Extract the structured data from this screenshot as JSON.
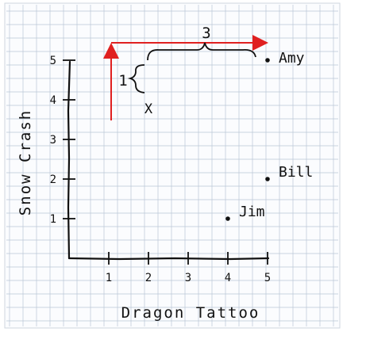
{
  "chart_data": {
    "type": "scatter",
    "xlabel": "Dragon Tattoo",
    "ylabel": "Snow Crash",
    "xlim": [
      0,
      5
    ],
    "ylim": [
      0,
      5
    ],
    "x_ticks": [
      "1",
      "2",
      "3",
      "4",
      "5"
    ],
    "y_ticks": [
      "1",
      "2",
      "3",
      "4",
      "5"
    ],
    "grid": true,
    "points": [
      {
        "label": "Amy",
        "x": 5,
        "y": 5
      },
      {
        "label": "Bill",
        "x": 5,
        "y": 2
      },
      {
        "label": "Jim",
        "x": 4,
        "y": 1
      },
      {
        "label": "X",
        "x": 2,
        "y": 4
      }
    ],
    "annotations": {
      "horizontal_distance": "3",
      "vertical_distance": "1"
    }
  },
  "colors": {
    "grid": "#b9c6d6",
    "ink": "#111111",
    "arrow": "#e02020",
    "paper": "#fbfcfe"
  }
}
